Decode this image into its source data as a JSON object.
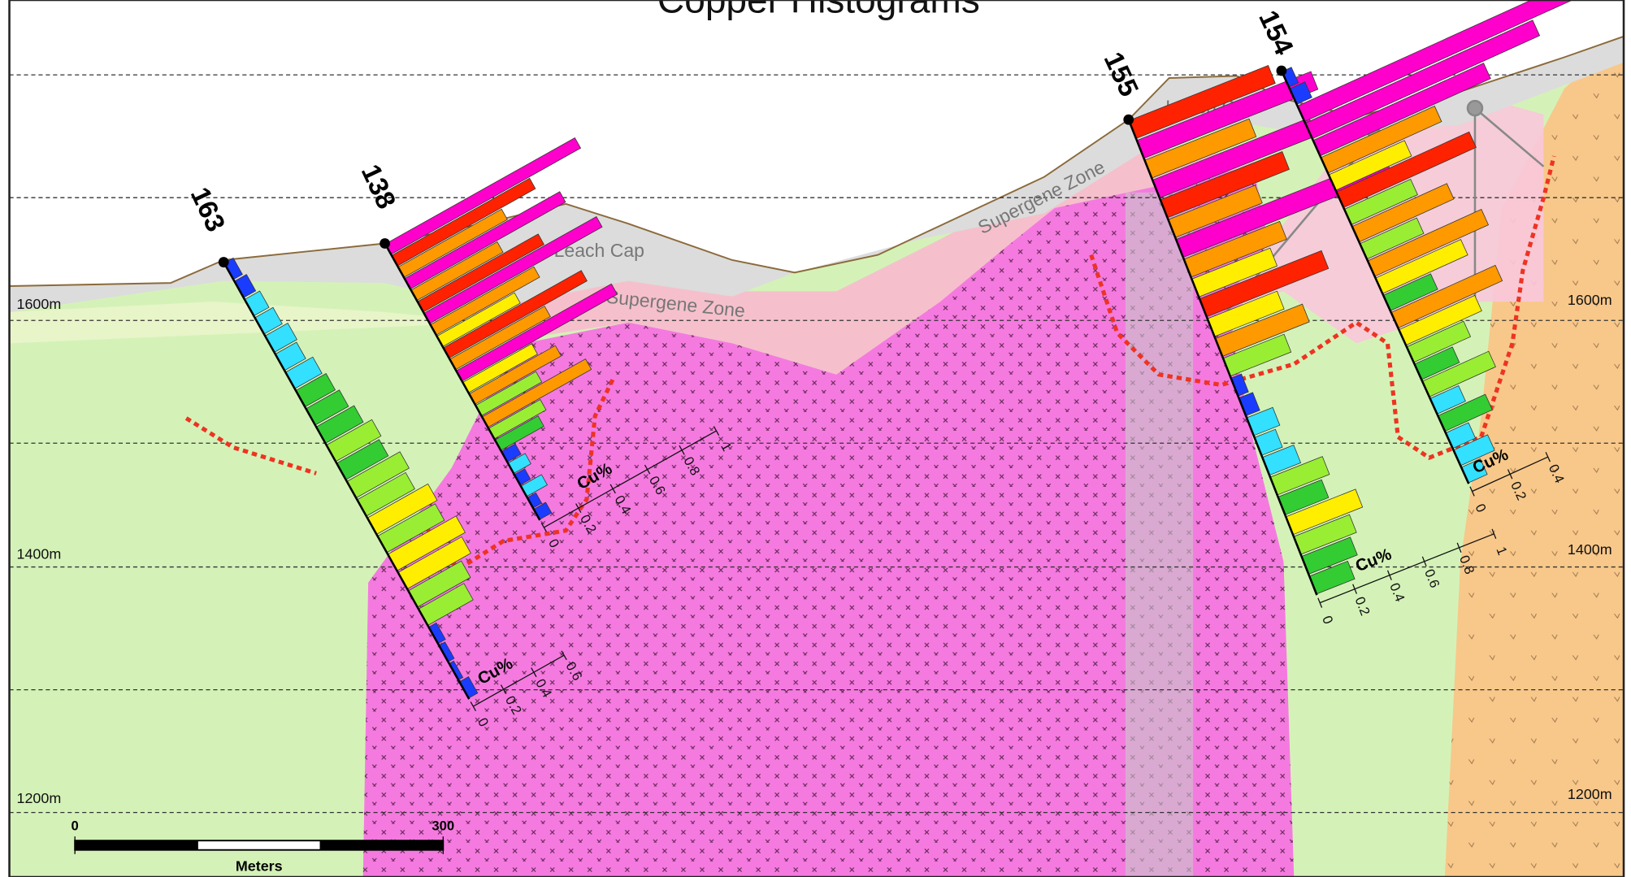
{
  "title": "Copper Histograms",
  "elevation_labels": [
    "1600m",
    "1400m",
    "1200m"
  ],
  "zone_labels": [
    "Leach Cap",
    "Leach Cap",
    "Supergene Zone",
    "Supergene Zone"
  ],
  "scale_bar": {
    "ticks": [
      0,
      300
    ],
    "unit": "Meters"
  },
  "drill_holes": [
    {
      "name": "163",
      "axis_label": "Cu%",
      "axis_ticks": [
        0,
        0.2,
        0.4,
        0.6
      ],
      "values": [
        0.06,
        0.08,
        0.1,
        0.12,
        0.15,
        0.14,
        0.18,
        0.2,
        0.22,
        0.25,
        0.3,
        0.28,
        0.35,
        0.32,
        0.4,
        0.38,
        0.45,
        0.42,
        0.35,
        0.3,
        0.05,
        0.04,
        0.03,
        0.06
      ],
      "colors": [
        "#1a3cff",
        "#1a3cff",
        "#33e0ff",
        "#33e0ff",
        "#33e0ff",
        "#33e0ff",
        "#33e0ff",
        "#33cc33",
        "#33cc33",
        "#33cc33",
        "#99ee33",
        "#33cc33",
        "#99ee33",
        "#99ee33",
        "#ffee00",
        "#99ee33",
        "#ffee00",
        "#ffee00",
        "#99ee33",
        "#99ee33",
        "#1a3cff",
        "#1a3cff",
        "#1a3cff",
        "#1a3cff"
      ]
    },
    {
      "name": "138",
      "axis_label": "Cu%",
      "axis_ticks": [
        0,
        0.2,
        0.4,
        0.6,
        0.8,
        1
      ],
      "values": [
        1.1,
        0.8,
        0.6,
        0.9,
        0.5,
        0.7,
        1.0,
        0.6,
        0.45,
        0.8,
        0.55,
        0.9,
        0.4,
        0.5,
        0.35,
        0.6,
        0.3,
        0.25,
        0.08,
        0.1,
        0.06,
        0.12,
        0.05,
        0.07
      ],
      "colors": [
        "#ff00cc",
        "#ff2200",
        "#ff9900",
        "#ff00cc",
        "#ff9900",
        "#ff2200",
        "#ff00cc",
        "#ff9900",
        "#ffee00",
        "#ff2200",
        "#ff9900",
        "#ff00cc",
        "#ffee00",
        "#ff9900",
        "#99ee33",
        "#ff9900",
        "#99ee33",
        "#33cc33",
        "#1a3cff",
        "#33e0ff",
        "#1a3cff",
        "#33e0ff",
        "#1a3cff",
        "#1a3cff"
      ]
    },
    {
      "name": "155",
      "axis_label": "Cu%",
      "axis_ticks": [
        0,
        0.2,
        0.4,
        0.6,
        0.8,
        1
      ],
      "values": [
        0.8,
        1.0,
        0.6,
        0.9,
        0.7,
        0.5,
        1.2,
        0.55,
        0.45,
        0.7,
        0.4,
        0.5,
        0.35,
        0.06,
        0.08,
        0.15,
        0.12,
        0.18,
        0.3,
        0.25,
        0.4,
        0.32,
        0.28,
        0.22
      ],
      "colors": [
        "#ff2200",
        "#ff00cc",
        "#ff9900",
        "#ff00cc",
        "#ff2200",
        "#ff9900",
        "#ff00cc",
        "#ff9900",
        "#ffee00",
        "#ff2200",
        "#ffee00",
        "#ff9900",
        "#99ee33",
        "#1a3cff",
        "#1a3cff",
        "#33e0ff",
        "#33e0ff",
        "#33e0ff",
        "#99ee33",
        "#33cc33",
        "#ffee00",
        "#99ee33",
        "#33cc33",
        "#33cc33"
      ]
    },
    {
      "name": "154",
      "axis_label": "Cu%",
      "axis_ticks": [
        0,
        0.2,
        0.4
      ],
      "values": [
        0.05,
        0.08,
        1.5,
        1.2,
        0.9,
        0.6,
        0.4,
        0.7,
        0.35,
        0.5,
        0.3,
        0.6,
        0.45,
        0.25,
        0.55,
        0.4,
        0.3,
        0.2,
        0.35,
        0.15,
        0.25,
        0.12,
        0.18,
        0.1
      ],
      "colors": [
        "#1a3cff",
        "#1a3cff",
        "#ff00cc",
        "#ff00cc",
        "#ff00cc",
        "#ff9900",
        "#ffee00",
        "#ff2200",
        "#99ee33",
        "#ff9900",
        "#99ee33",
        "#ff9900",
        "#ffee00",
        "#33cc33",
        "#ff9900",
        "#ffee00",
        "#99ee33",
        "#33cc33",
        "#99ee33",
        "#33e0ff",
        "#33cc33",
        "#33e0ff",
        "#33e0ff",
        "#33e0ff"
      ]
    }
  ]
}
